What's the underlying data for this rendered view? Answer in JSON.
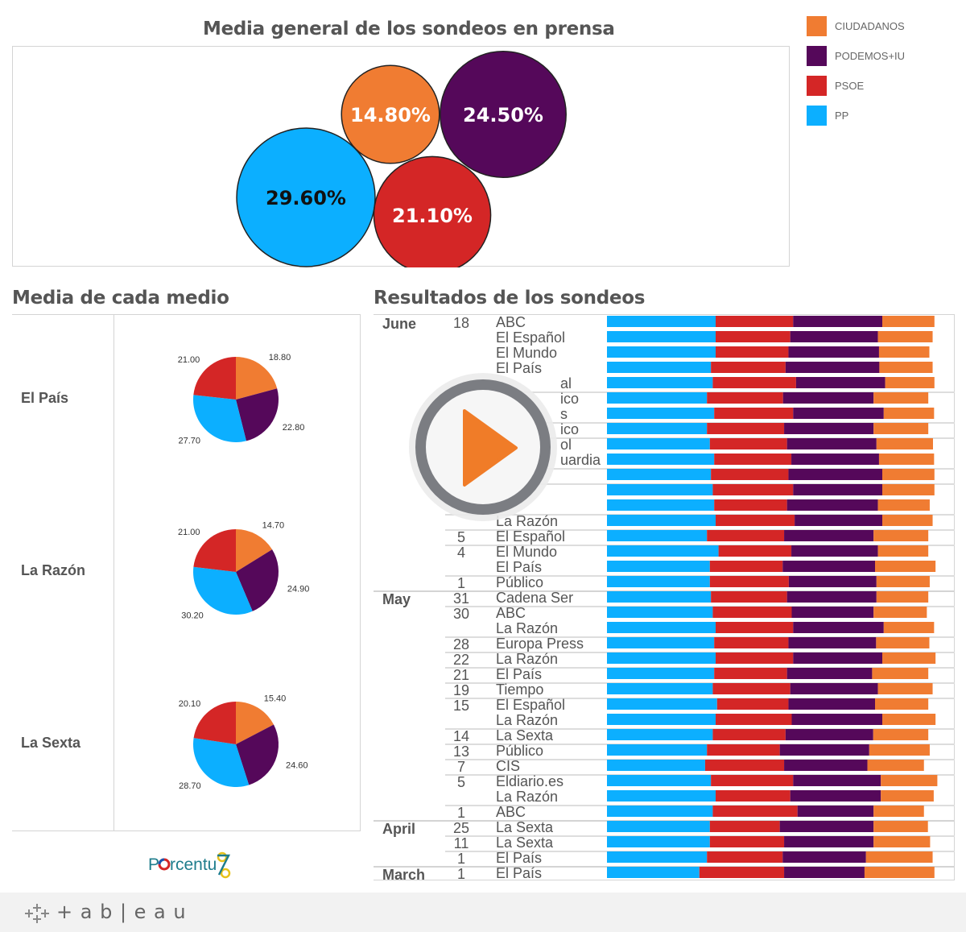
{
  "colors": {
    "CIUDADANOS": "#f07c32",
    "PODEMOS+IU": "#55085a",
    "PSOE": "#d42626",
    "PP": "#0cafff"
  },
  "bubble_chart": {
    "title": "Media general de los sondeos en prensa",
    "bubbles": [
      {
        "party": "CIUDADANOS",
        "value": 14.8,
        "label": "14.80%"
      },
      {
        "party": "PODEMOS+IU",
        "value": 24.5,
        "label": "24.50%"
      },
      {
        "party": "PP",
        "value": 29.6,
        "label": "29.60%"
      },
      {
        "party": "PSOE",
        "value": 21.1,
        "label": "21.10%"
      }
    ]
  },
  "legend": [
    {
      "label": "CIUDADANOS",
      "color": "#f07c32"
    },
    {
      "label": "PODEMOS+IU",
      "color": "#55085a"
    },
    {
      "label": "PSOE",
      "color": "#d42626"
    },
    {
      "label": "PP",
      "color": "#0cafff"
    }
  ],
  "chart_data": [
    {
      "type": "bubble",
      "title": "Media general de los sondeos en prensa",
      "categories": [
        "CIUDADANOS",
        "PODEMOS+IU",
        "PP",
        "PSOE"
      ],
      "values": [
        14.8,
        24.5,
        29.6,
        21.1
      ]
    },
    {
      "type": "pie",
      "title": "Media de cada medio",
      "party_order": [
        "CIUDADANOS",
        "PODEMOS+IU",
        "PP",
        "PSOE"
      ],
      "pies": [
        {
          "medio": "El País",
          "values": [
            18.8,
            22.8,
            27.7,
            21.0
          ],
          "labels": [
            "18.80",
            "22.80",
            "27.70",
            "21.00"
          ]
        },
        {
          "medio": "La Razón",
          "values": [
            14.7,
            24.9,
            30.2,
            21.0
          ],
          "labels": [
            "14.70",
            "24.90",
            "30.20",
            "21.00"
          ]
        },
        {
          "medio": "La Sexta",
          "values": [
            15.4,
            24.6,
            28.7,
            20.1
          ],
          "labels": [
            "15.40",
            "24.60",
            "28.70",
            "20.10"
          ]
        }
      ]
    },
    {
      "type": "bar",
      "stacked": true,
      "orientation": "horizontal",
      "title": "Resultados de los sondeos",
      "series_order": [
        "PP",
        "PSOE",
        "PODEMOS+IU",
        "CIUDADANOS"
      ],
      "rows": [
        {
          "month": "June",
          "day": "18",
          "source": "ABC",
          "values": [
            30.0,
            21.4,
            24.6,
            14.4
          ]
        },
        {
          "month": "",
          "day": "",
          "source": "El Español",
          "values": [
            30.0,
            20.6,
            24.2,
            15.1
          ]
        },
        {
          "month": "",
          "day": "",
          "source": "El Mundo",
          "values": [
            30.0,
            20.1,
            25.0,
            13.9
          ]
        },
        {
          "month": "",
          "day": "",
          "source": "El País",
          "values": [
            28.7,
            20.6,
            25.9,
            14.7
          ]
        },
        {
          "month": "",
          "day": "",
          "source": "al",
          "frag": true,
          "values": [
            29.2,
            23.0,
            24.6,
            13.6
          ]
        },
        {
          "month": "",
          "day": "",
          "source": "ico",
          "frag": true,
          "sep": true,
          "values": [
            27.6,
            21.0,
            25.0,
            15.1
          ]
        },
        {
          "month": "",
          "day": "",
          "source": "s",
          "frag": true,
          "values": [
            29.6,
            21.8,
            25.0,
            13.9
          ]
        },
        {
          "month": "",
          "day": "",
          "source": "ico",
          "frag": true,
          "sep": true,
          "values": [
            27.6,
            21.3,
            24.7,
            15.1
          ]
        },
        {
          "month": "",
          "day": "",
          "source": "ol",
          "frag": true,
          "sep": true,
          "values": [
            28.4,
            21.3,
            24.7,
            15.6
          ]
        },
        {
          "month": "",
          "day": "",
          "source": "uardia",
          "frag": true,
          "values": [
            29.6,
            21.3,
            24.2,
            15.2
          ]
        },
        {
          "month": "",
          "day": "",
          "source": "",
          "sep": true,
          "values": [
            28.7,
            21.4,
            25.9,
            14.4
          ]
        },
        {
          "month": "",
          "day": "",
          "source": "",
          "sep": true,
          "values": [
            29.2,
            22.2,
            24.6,
            14.4
          ]
        },
        {
          "month": "",
          "day": "",
          "source": "",
          "values": [
            29.6,
            20.1,
            25.1,
            14.3
          ]
        },
        {
          "month": "",
          "day": "",
          "source": "La Razón",
          "sep": true,
          "values": [
            30.0,
            21.8,
            24.2,
            13.9
          ]
        },
        {
          "month": "",
          "day": "5",
          "source": "El Español",
          "values": [
            27.6,
            21.3,
            24.7,
            15.1
          ]
        },
        {
          "month": "",
          "day": "4",
          "source": "El Mundo",
          "values": [
            30.8,
            20.1,
            23.9,
            13.9
          ]
        },
        {
          "month": "",
          "day": "",
          "source": "El País",
          "values": [
            28.4,
            20.1,
            25.5,
            16.7
          ]
        },
        {
          "month": "",
          "day": "1",
          "source": "Público",
          "values": [
            28.4,
            21.8,
            24.2,
            14.7
          ]
        },
        {
          "month": "May",
          "day": "31",
          "source": "Cadena Ser",
          "values": [
            28.7,
            21.0,
            24.7,
            14.3
          ]
        },
        {
          "month": "",
          "day": "30",
          "source": "ABC",
          "values": [
            29.2,
            21.8,
            22.6,
            14.7
          ]
        },
        {
          "month": "",
          "day": "",
          "source": "La Razón",
          "values": [
            30.0,
            21.4,
            25.0,
            13.9
          ]
        },
        {
          "month": "",
          "day": "28",
          "source": "Europa Press",
          "values": [
            29.6,
            20.5,
            24.2,
            14.7
          ]
        },
        {
          "month": "",
          "day": "22",
          "source": "La Razón",
          "values": [
            30.0,
            21.4,
            24.6,
            14.7
          ]
        },
        {
          "month": "",
          "day": "21",
          "source": "El País",
          "values": [
            29.6,
            20.1,
            23.5,
            15.5
          ]
        },
        {
          "month": "",
          "day": "19",
          "source": "Tiempo",
          "values": [
            29.2,
            21.4,
            24.2,
            15.1
          ]
        },
        {
          "month": "",
          "day": "15",
          "source": "El Español",
          "values": [
            30.4,
            19.7,
            23.9,
            14.7
          ]
        },
        {
          "month": "",
          "day": "",
          "source": "La Razón",
          "values": [
            30.0,
            21.0,
            25.0,
            14.7
          ]
        },
        {
          "month": "",
          "day": "14",
          "source": "La Sexta",
          "values": [
            29.2,
            20.1,
            24.2,
            15.2
          ]
        },
        {
          "month": "",
          "day": "13",
          "source": "Público",
          "values": [
            27.6,
            20.1,
            24.7,
            16.7
          ]
        },
        {
          "month": "",
          "day": "7",
          "source": "CIS",
          "values": [
            27.1,
            21.8,
            23.0,
            15.6
          ]
        },
        {
          "month": "",
          "day": "5",
          "source": "Eldiario.es",
          "values": [
            28.7,
            22.7,
            24.2,
            15.6
          ]
        },
        {
          "month": "",
          "day": "",
          "source": "La Razón",
          "values": [
            30.0,
            20.6,
            25.0,
            14.6
          ]
        },
        {
          "month": "",
          "day": "1",
          "source": "ABC",
          "values": [
            29.2,
            23.4,
            21.0,
            13.9
          ]
        },
        {
          "month": "April",
          "day": "25",
          "source": "La Sexta",
          "values": [
            28.4,
            19.3,
            25.9,
            15.0
          ]
        },
        {
          "month": "",
          "day": "11",
          "source": "La Sexta",
          "values": [
            28.4,
            20.5,
            24.7,
            15.6
          ]
        },
        {
          "month": "",
          "day": "1",
          "source": "El País",
          "values": [
            27.6,
            20.9,
            23.0,
            18.4
          ]
        },
        {
          "month": "March",
          "day": "1",
          "source": "El País",
          "values": [
            25.5,
            23.4,
            22.2,
            19.3
          ]
        }
      ]
    }
  ],
  "medio_section": {
    "title": "Media de cada medio"
  },
  "results_section": {
    "title": "Resultados de los sondeos"
  },
  "logo": {
    "text": "Porcentuz"
  },
  "footer": {
    "brand": "+ a b | e a u"
  },
  "icons": {
    "play": "play-icon",
    "tableau": "tableau-logo-icon"
  }
}
